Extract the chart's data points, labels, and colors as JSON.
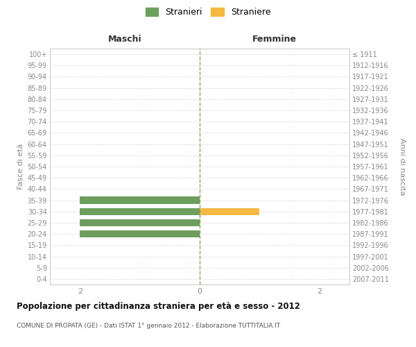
{
  "age_groups": [
    "0-4",
    "5-9",
    "10-14",
    "15-19",
    "20-24",
    "25-29",
    "30-34",
    "35-39",
    "40-44",
    "45-49",
    "50-54",
    "55-59",
    "60-64",
    "65-69",
    "70-74",
    "75-79",
    "80-84",
    "85-89",
    "90-94",
    "95-99",
    "100+"
  ],
  "birth_years": [
    "2007-2011",
    "2002-2006",
    "1997-2001",
    "1992-1996",
    "1987-1991",
    "1982-1986",
    "1977-1981",
    "1972-1976",
    "1967-1971",
    "1962-1966",
    "1957-1961",
    "1952-1956",
    "1947-1951",
    "1942-1946",
    "1937-1941",
    "1932-1936",
    "1927-1931",
    "1922-1926",
    "1917-1921",
    "1912-1916",
    "≤ 1911"
  ],
  "males": [
    0,
    0,
    0,
    0,
    2,
    2,
    2,
    2,
    0,
    0,
    0,
    0,
    0,
    0,
    0,
    0,
    0,
    0,
    0,
    0,
    0
  ],
  "females": [
    0,
    0,
    0,
    0,
    0,
    0,
    1,
    0,
    0,
    0,
    0,
    0,
    0,
    0,
    0,
    0,
    0,
    0,
    0,
    0,
    0
  ],
  "male_color": "#6e9e5e",
  "female_color": "#f5b942",
  "xlim": 2.5,
  "title": "Popolazione per cittadinanza straniera per età e sesso - 2012",
  "subtitle": "COMUNE DI PROPATA (GE) - Dati ISTAT 1° gennaio 2012 - Elaborazione TUTTITALIA.IT",
  "legend_male": "Stranieri",
  "legend_female": "Straniere",
  "label_left": "Maschi",
  "label_right": "Femmine",
  "ylabel_left": "Fasce di età",
  "ylabel_right": "Anni di nascita",
  "background_color": "#ffffff",
  "grid_color": "#cccccc",
  "vline_color": "#999966",
  "spine_color": "#cccccc",
  "tick_color": "#888888"
}
